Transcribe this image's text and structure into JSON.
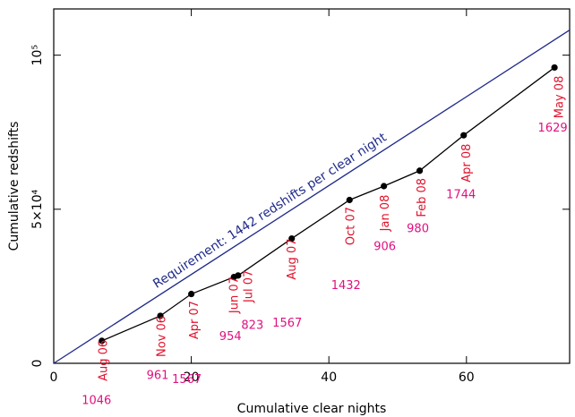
{
  "chart_data": {
    "type": "line",
    "x_label": "Cumulative clear nights",
    "y_label": "Cumulative redshifts",
    "xlim": [
      0,
      75
    ],
    "ylim": [
      0,
      115000
    ],
    "xticks": [
      0,
      20,
      40,
      60
    ],
    "yticks": [
      0,
      {
        "value": 50000,
        "label": "5×10⁴"
      },
      {
        "value": 100000,
        "label": "10⁵"
      }
    ],
    "x": [
      7.0,
      15.5,
      20.0,
      26.2,
      26.8,
      34.6,
      43.0,
      48.0,
      53.2,
      59.6,
      72.8
    ],
    "values": [
      7300,
      15400,
      22500,
      28000,
      28500,
      40500,
      53000,
      57500,
      62500,
      74000,
      96000
    ],
    "color": "#000000",
    "point_labels": [
      "Aug 06",
      "Nov 06",
      "Apr 07",
      "Jun 07",
      "Jul 07",
      "Aug 07",
      "Oct 07",
      "Jan 08",
      "Feb 08",
      "Apr 08",
      "May 08"
    ],
    "point_label_color": "#e0102a",
    "rates": [
      1046,
      961,
      1567,
      954,
      823,
      1567,
      1432,
      906,
      980,
      1744,
      1629
    ],
    "rate_color": "#e0107f",
    "reference_line": {
      "label": "Requirement: 1442 redshifts per clear night",
      "slope": 1442,
      "color": "#1f2a8a"
    }
  }
}
